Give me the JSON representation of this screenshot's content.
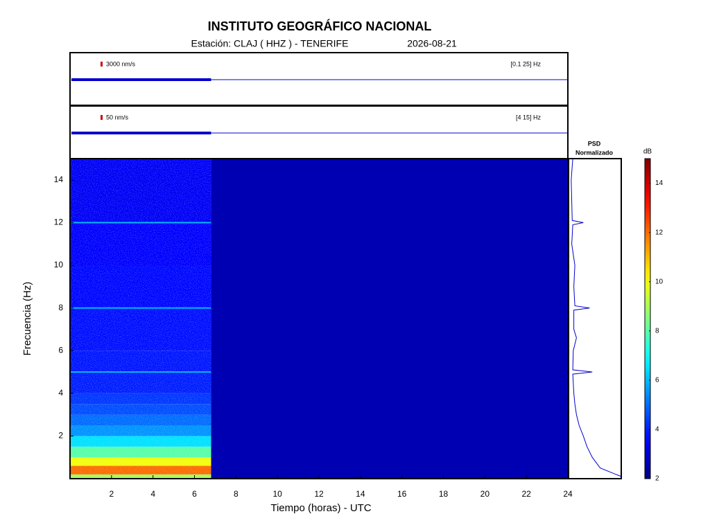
{
  "header": {
    "title": "INSTITUTO GEOGRÁFICO NACIONAL",
    "station": "Estación:  CLAJ ( HHZ ) - TENERIFE",
    "date": "2026-08-21"
  },
  "chart_data": [
    {
      "type": "trace",
      "scale_label": "3000 nm/s",
      "band_label": "[0.1 25] Hz",
      "xlim": [
        0,
        24
      ],
      "data_end": 6.8,
      "color": "#0000cc"
    },
    {
      "type": "trace",
      "scale_label": "50 nm/s",
      "band_label": "[4 15] Hz",
      "xlim": [
        0,
        24
      ],
      "data_end": 6.8,
      "color": "#0000cc"
    },
    {
      "type": "heatmap",
      "xlabel": "Tiempo (horas) - UTC",
      "ylabel": "Frecuencia  (Hz)",
      "xlim": [
        0,
        24
      ],
      "ylim": [
        0,
        15
      ],
      "xticks": [
        2,
        4,
        6,
        8,
        10,
        12,
        14,
        16,
        18,
        20,
        22,
        24
      ],
      "yticks": [
        2,
        4,
        6,
        8,
        10,
        12,
        14
      ],
      "data_end": 6.8,
      "freq_bins": [
        0,
        0.2,
        0.6,
        1,
        1.5,
        2,
        2.5,
        3,
        3.5,
        4,
        5,
        6,
        8,
        10,
        12,
        15
      ],
      "db": [
        9,
        12,
        10,
        8,
        6.5,
        5.5,
        5,
        4.6,
        4.3,
        4,
        3.9,
        3.8,
        3.7,
        3.6,
        3.5
      ],
      "line_freqs": [
        5,
        8,
        12
      ],
      "line_db": 6
    },
    {
      "type": "psd",
      "title": "PSD",
      "subtitle": "Normalizado",
      "xlim": [
        0,
        1
      ],
      "ylim": [
        0,
        15
      ],
      "color": "#0000cc",
      "y": [
        0.1,
        0.3,
        0.5,
        1,
        1.5,
        2,
        2.5,
        3,
        3.5,
        4,
        4.5,
        4.9,
        5,
        5.1,
        6,
        6.6,
        7,
        7.9,
        8,
        8.1,
        9,
        10,
        11,
        11.9,
        12,
        12.1,
        13,
        14,
        15
      ],
      "values": [
        1,
        0.8,
        0.6,
        0.45,
        0.35,
        0.28,
        0.2,
        0.15,
        0.12,
        0.1,
        0.09,
        0.08,
        0.45,
        0.08,
        0.09,
        0.15,
        0.1,
        0.1,
        0.4,
        0.12,
        0.1,
        0.12,
        0.06,
        0.08,
        0.28,
        0.07,
        0.06,
        0.05,
        0.08
      ]
    },
    {
      "type": "colorbar",
      "label": "dB",
      "ylim": [
        2,
        15
      ],
      "yticks": [
        2,
        4,
        6,
        8,
        10,
        12,
        14
      ],
      "colormap": "jet"
    }
  ]
}
